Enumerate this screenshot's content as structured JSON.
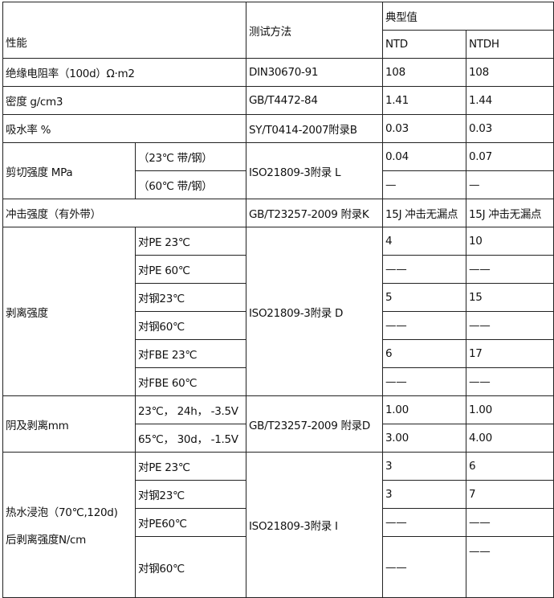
{
  "header": {
    "property": "性能",
    "method": "测试方法",
    "typical": "典型值",
    "ntd": "NTD",
    "ntdh": "NTDH"
  },
  "rows": {
    "insulation": {
      "label": "绝缘电阻率（100d）Ω·m2",
      "method": "DIN30670-91",
      "ntd": "108",
      "ntdh": "108"
    },
    "density": {
      "label": "密度  g/cm3",
      "method": "GB/T4472-84",
      "ntd": "1.41",
      "ntdh": "1.44"
    },
    "water": {
      "label": "吸水率  %",
      "method": "SY/T0414-2007附录B",
      "ntd": "0.03",
      "ntdh": "0.03"
    },
    "shear": {
      "label": "剪切强度 MPa",
      "method": "ISO21809-3附录 L",
      "sub": [
        {
          "label": "（23℃ 带/钢）",
          "ntd": "0.04",
          "ntdh": "0.07"
        },
        {
          "label": "（60℃ 带/钢）",
          "ntd": "—",
          "ntdh": "—"
        }
      ]
    },
    "impact": {
      "label": "冲击强度（有外带）",
      "method": "GB/T23257-2009 附录K",
      "ntd": "15J 冲击无漏点",
      "ntdh": "15J 冲击无漏点"
    },
    "peel": {
      "label": "剥离强度",
      "method": "ISO21809-3附录 D",
      "sub": [
        {
          "label": "对PE 23℃",
          "ntd": "4",
          "ntdh": "10"
        },
        {
          "label": "对PE 60℃",
          "ntd": "——",
          "ntdh": "——"
        },
        {
          "label": "对钢23℃",
          "ntd": "5",
          "ntdh": "15"
        },
        {
          "label": "对钢60℃",
          "ntd": "——",
          "ntdh": "——"
        },
        {
          "label": "对FBE 23℃",
          "ntd": "6",
          "ntdh": "17"
        },
        {
          "label": "对FBE 60℃",
          "ntd": "——",
          "ntdh": "——"
        }
      ]
    },
    "cathodic": {
      "label": "阴及剥离mm",
      "method": "GB/T23257-2009 附录D",
      "sub": [
        {
          "label": "23℃，  24h，  -3.5V",
          "ntd": "1.00",
          "ntdh": "1.00"
        },
        {
          "label": "65℃，  30d，  -1.5V",
          "ntd": "3.00",
          "ntdh": "4.00"
        }
      ]
    },
    "hotwater": {
      "label1": "热水浸泡（70℃,120d)",
      "label2": "后剥离强度N/cm",
      "method": "ISO21809-3附录 I",
      "sub": [
        {
          "label": "对PE 23℃",
          "ntd": "3",
          "ntdh": "6"
        },
        {
          "label": "对钢23℃",
          "ntd": "3",
          "ntdh": "7"
        },
        {
          "label": "对PE60℃",
          "ntd": "——",
          "ntdh": "——"
        },
        {
          "label": "对钢60℃",
          "ntd": "——",
          "ntdh": "——"
        }
      ]
    }
  }
}
